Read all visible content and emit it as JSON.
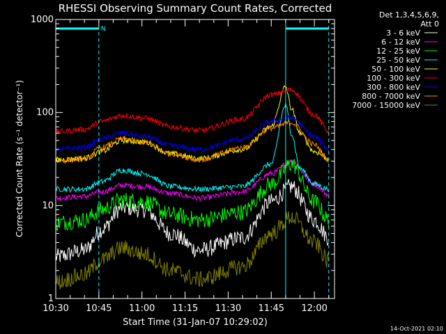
{
  "colors": {
    "background": "#000000",
    "text": "#ffffff",
    "attenuator": "#00ffff"
  },
  "chart_data": {
    "type": "line",
    "title": "RHESSI Observing Summary Count Rates, Corrected",
    "xlabel": "Start Time (31-Jan-07 10:29:02)",
    "ylabel": "Corrected Count Rate (s⁻¹ detector⁻¹)",
    "footer": "14-Oct-2021 02:10",
    "y_scale": "log",
    "ylim": [
      1,
      1000
    ],
    "y_ticks": [
      {
        "value": 1,
        "label": "1"
      },
      {
        "value": 10,
        "label": "10"
      },
      {
        "value": 100,
        "label": "100"
      },
      {
        "value": 1000,
        "label": "1000"
      }
    ],
    "xlim": [
      "10:30",
      "12:07"
    ],
    "x_ticks": [
      "10:30",
      "10:45",
      "11:00",
      "11:15",
      "11:30",
      "11:45",
      "12:00"
    ],
    "legend": {
      "placement": "right",
      "header": [
        "Det 1,3,4,5,6,9,",
        "Att 0"
      ]
    },
    "grid": false,
    "series": [
      {
        "name": "3 - 6 keV",
        "color": "#ffffff",
        "x": [
          "10:30",
          "10:40",
          "10:46",
          "10:53",
          "11:01",
          "11:10",
          "11:20",
          "11:35",
          "11:45",
          "11:52",
          "12:00",
          "12:05"
        ],
        "y": [
          2.8,
          3.3,
          5.5,
          9.5,
          9.0,
          5.0,
          3.3,
          4.5,
          11,
          16,
          7,
          4.5
        ]
      },
      {
        "name": "6 - 12 keV",
        "color": "#ff00ff",
        "x": [
          "10:30",
          "10:40",
          "10:46",
          "10:53",
          "11:01",
          "11:10",
          "11:20",
          "11:35",
          "11:45",
          "11:52",
          "12:00",
          "12:05"
        ],
        "y": [
          12,
          12.5,
          14,
          16.5,
          16,
          13.5,
          12,
          14,
          22,
          30,
          17,
          13
        ]
      },
      {
        "name": "12 - 25 keV",
        "color": "#00ff00",
        "x": [
          "10:30",
          "10:40",
          "10:46",
          "10:53",
          "11:01",
          "11:10",
          "11:20",
          "11:35",
          "11:45",
          "11:52",
          "12:00",
          "12:05"
        ],
        "y": [
          6.5,
          7,
          9,
          11.5,
          11,
          8,
          7,
          8.5,
          17,
          28,
          11,
          7
        ]
      },
      {
        "name": "25 - 50 keV",
        "color": "#00ffff",
        "x": [
          "10:30",
          "10:40",
          "10:46",
          "10:53",
          "11:01",
          "11:10",
          "11:20",
          "11:35",
          "11:45",
          "11:50",
          "11:52",
          "11:55",
          "12:00",
          "12:05"
        ],
        "y": [
          15,
          15,
          18,
          24,
          22,
          16,
          15,
          16,
          28,
          120,
          60,
          25,
          17,
          15
        ]
      },
      {
        "name": "50 - 100 keV",
        "color": "#ffff00",
        "x": [
          "10:30",
          "10:40",
          "10:46",
          "10:53",
          "11:01",
          "11:10",
          "11:20",
          "11:35",
          "11:45",
          "11:50",
          "11:52",
          "11:55",
          "12:00",
          "12:05"
        ],
        "y": [
          31,
          32,
          38,
          50,
          48,
          36,
          32,
          40,
          70,
          190,
          110,
          60,
          38,
          32
        ]
      },
      {
        "name": "100 - 300 keV",
        "color": "#ff0000",
        "x": [
          "10:30",
          "10:40",
          "10:46",
          "10:53",
          "11:01",
          "11:10",
          "11:20",
          "11:35",
          "11:45",
          "11:52",
          "12:00",
          "12:05"
        ],
        "y": [
          62,
          66,
          80,
          93,
          87,
          70,
          64,
          85,
          155,
          175,
          95,
          63
        ]
      },
      {
        "name": "300 - 800 keV",
        "color": "#0000ff",
        "x": [
          "10:30",
          "10:40",
          "10:46",
          "10:53",
          "11:01",
          "11:10",
          "11:20",
          "11:35",
          "11:45",
          "11:52",
          "12:00",
          "12:05"
        ],
        "y": [
          40,
          42,
          52,
          60,
          55,
          44,
          40,
          52,
          80,
          88,
          55,
          40
        ]
      },
      {
        "name": "800 - 7000 keV",
        "color": "#ff8c00",
        "x": [
          "10:30",
          "10:40",
          "10:46",
          "10:53",
          "11:01",
          "11:10",
          "11:20",
          "11:35",
          "11:45",
          "11:52",
          "12:00",
          "12:05"
        ],
        "y": [
          30,
          32,
          42,
          52,
          48,
          36,
          31,
          42,
          68,
          78,
          45,
          31
        ]
      },
      {
        "name": "7000 - 15000 keV",
        "color": "#808000",
        "x": [
          "10:30",
          "10:40",
          "10:46",
          "10:53",
          "11:01",
          "11:10",
          "11:20",
          "11:35",
          "11:45",
          "11:52",
          "12:00",
          "12:05"
        ],
        "y": [
          1.5,
          1.8,
          2.6,
          3.5,
          3.0,
          2.0,
          1.6,
          2.2,
          5,
          7.5,
          4,
          2.5
        ]
      }
    ],
    "annotations": [
      {
        "type": "attenuator-bar",
        "start": "10:30",
        "end": "10:45",
        "y": 800,
        "label": "N"
      },
      {
        "type": "attenuator-bar",
        "start": "11:50",
        "end": "12:05",
        "y": 800,
        "label": ""
      },
      {
        "type": "vline",
        "x": "10:45",
        "style": "dashed"
      },
      {
        "type": "vline",
        "x": "11:50",
        "style": "solid"
      },
      {
        "type": "vline",
        "x": "12:05",
        "style": "dashed"
      }
    ]
  }
}
